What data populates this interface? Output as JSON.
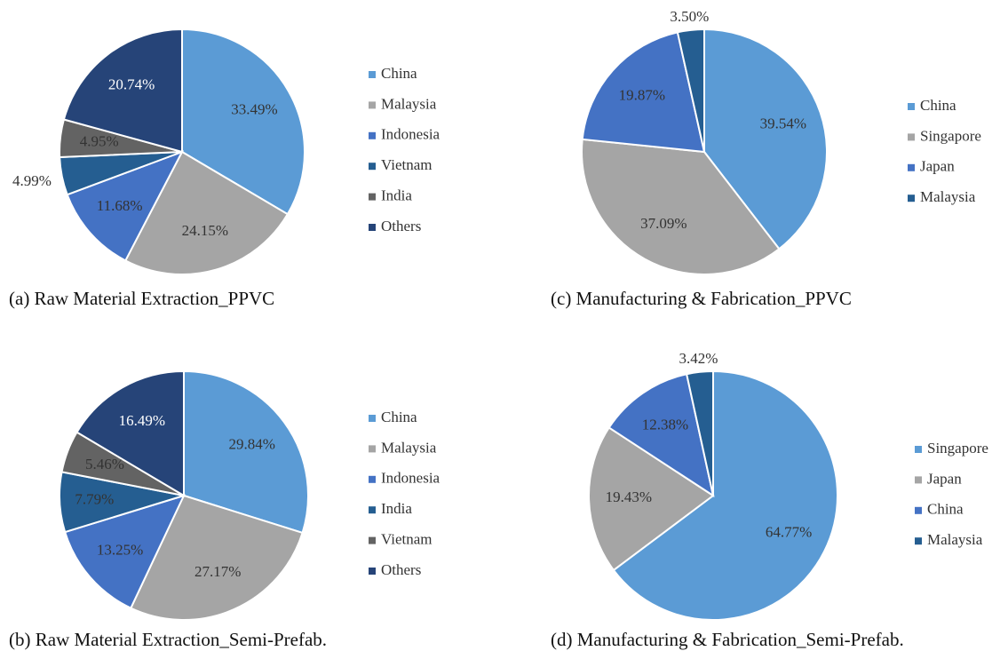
{
  "chart_data": [
    {
      "type": "pie",
      "title": "(a) Raw Material Extraction_PPVC",
      "categories": [
        "China",
        "Malaysia",
        "Indonesia",
        "Vietnam",
        "India",
        "Others"
      ],
      "values": [
        33.49,
        24.15,
        11.68,
        4.99,
        4.95,
        20.74
      ],
      "value_labels": [
        "33.49%",
        "24.15%",
        "11.68%",
        "4.99%",
        "4.95%",
        "20.74%"
      ],
      "colors": [
        "#5b9bd5",
        "#a5a5a5",
        "#4472c4",
        "#255e91",
        "#636363",
        "#264478"
      ]
    },
    {
      "type": "pie",
      "title": "(b) Raw Material Extraction_Semi-Prefab.",
      "categories": [
        "China",
        "Malaysia",
        "Indonesia",
        "India",
        "Vietnam",
        "Others"
      ],
      "values": [
        29.84,
        27.17,
        13.25,
        7.79,
        5.46,
        16.49
      ],
      "value_labels": [
        "29.84%",
        "27.17%",
        "13.25%",
        "7.79%",
        "5.46%",
        "16.49%"
      ],
      "colors": [
        "#5b9bd5",
        "#a5a5a5",
        "#4472c4",
        "#255e91",
        "#636363",
        "#264478"
      ]
    },
    {
      "type": "pie",
      "title": "(c) Manufacturing & Fabrication_PPVC",
      "categories": [
        "China",
        "Singapore",
        "Japan",
        "Malaysia"
      ],
      "values": [
        39.54,
        37.09,
        19.87,
        3.5
      ],
      "value_labels": [
        "39.54%",
        "37.09%",
        "19.87%",
        "3.50%"
      ],
      "colors": [
        "#5b9bd5",
        "#a5a5a5",
        "#4472c4",
        "#255e91"
      ]
    },
    {
      "type": "pie",
      "title": "(d) Manufacturing & Fabrication_Semi-Prefab.",
      "categories": [
        "Singapore",
        "Japan",
        "China",
        "Malaysia"
      ],
      "values": [
        64.77,
        19.43,
        12.38,
        3.42
      ],
      "value_labels": [
        "64.77%",
        "19.43%",
        "12.38%",
        "3.42%"
      ],
      "colors": [
        "#5b9bd5",
        "#a5a5a5",
        "#4472c4",
        "#255e91"
      ]
    }
  ]
}
